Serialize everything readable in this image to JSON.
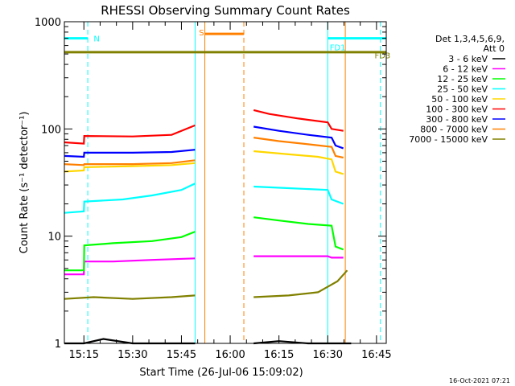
{
  "chart_data": {
    "type": "line",
    "title": "RHESSI Observing Summary Count Rates",
    "xlabel": "Start Time (26-Jul-06 15:09:02)",
    "ylabel": "Count Rate (s⁻¹ detector⁻¹)",
    "y_scale": "log",
    "ylim": [
      1,
      1000
    ],
    "y_ticks": [
      "1",
      "10",
      "100",
      "1000"
    ],
    "x_range_minutes": [
      15.15,
      16.8
    ],
    "x_ticks": [
      "15:15",
      "15:30",
      "15:45",
      "16:00",
      "16:15",
      "16:30",
      "16:45"
    ],
    "grid": false,
    "legend_placement": "right",
    "legend_header": [
      "Det 1,3,4,5,6,9,",
      "Att 0"
    ],
    "series": [
      {
        "name": "3 - 6 keV",
        "color": "#000000",
        "segments": [
          {
            "x": [
              15.15,
              15.25,
              15.35,
              15.5,
              15.65,
              15.82
            ],
            "y": [
              1.0,
              1.0,
              1.1,
              1.0,
              1.0,
              1.0
            ]
          },
          {
            "x": [
              16.12,
              16.25,
              16.4,
              16.55,
              16.62
            ],
            "y": [
              1.0,
              1.05,
              1.0,
              1.0,
              1.0
            ]
          }
        ]
      },
      {
        "name": "6 - 12 keV",
        "color": "#ff00ff",
        "segments": [
          {
            "x": [
              15.15,
              15.25,
              15.252,
              15.4,
              15.6,
              15.82
            ],
            "y": [
              4.4,
              4.4,
              5.8,
              5.8,
              6.0,
              6.2
            ]
          },
          {
            "x": [
              16.12,
              16.3,
              16.5,
              16.52,
              16.58
            ],
            "y": [
              6.5,
              6.5,
              6.5,
              6.3,
              6.3
            ]
          }
        ]
      },
      {
        "name": "12 - 25 keV",
        "color": "#00ff00",
        "segments": [
          {
            "x": [
              15.15,
              15.25,
              15.252,
              15.4,
              15.6,
              15.75,
              15.82
            ],
            "y": [
              4.8,
              4.8,
              8.2,
              8.6,
              9.0,
              9.8,
              11.0
            ]
          },
          {
            "x": [
              16.12,
              16.25,
              16.4,
              16.52,
              16.54,
              16.58
            ],
            "y": [
              15.0,
              14.0,
              13.0,
              12.5,
              8.0,
              7.5
            ]
          }
        ]
      },
      {
        "name": "25 - 50 keV",
        "color": "#00ffff",
        "segments": [
          {
            "x": [
              15.15,
              15.25,
              15.252,
              15.45,
              15.6,
              15.75,
              15.82
            ],
            "y": [
              16.5,
              17.0,
              21.0,
              22.0,
              24.0,
              27.0,
              31.0
            ]
          },
          {
            "x": [
              16.12,
              16.3,
              16.5,
              16.52,
              16.58
            ],
            "y": [
              29.0,
              28.0,
              27.0,
              22.0,
              20.0
            ]
          }
        ]
      },
      {
        "name": "50 - 100 keV",
        "color": "#ffd700",
        "segments": [
          {
            "x": [
              15.15,
              15.25,
              15.252,
              15.5,
              15.7,
              15.82
            ],
            "y": [
              40.0,
              41.0,
              44.0,
              45.0,
              46.0,
              48.0
            ]
          },
          {
            "x": [
              16.12,
              16.3,
              16.45,
              16.52,
              16.54,
              16.58
            ],
            "y": [
              62.0,
              58.0,
              55.0,
              52.0,
              40.0,
              38.0
            ]
          }
        ]
      },
      {
        "name": "100 - 300 keV",
        "color": "#ff0000",
        "segments": [
          {
            "x": [
              15.15,
              15.25,
              15.252,
              15.5,
              15.7,
              15.82
            ],
            "y": [
              75.0,
              73.0,
              86.0,
              85.0,
              88.0,
              108.0
            ]
          },
          {
            "x": [
              16.12,
              16.2,
              16.35,
              16.5,
              16.52,
              16.58
            ],
            "y": [
              150.0,
              138.0,
              125.0,
              115.0,
              100.0,
              96.0
            ]
          }
        ]
      },
      {
        "name": "300 - 800 keV",
        "color": "#0000ff",
        "segments": [
          {
            "x": [
              15.15,
              15.25,
              15.252,
              15.5,
              15.7,
              15.82
            ],
            "y": [
              56.0,
              55.0,
              60.0,
              60.0,
              61.0,
              64.0
            ]
          },
          {
            "x": [
              16.12,
              16.25,
              16.4,
              16.52,
              16.54,
              16.58
            ],
            "y": [
              105.0,
              96.0,
              88.0,
              83.0,
              70.0,
              66.0
            ]
          }
        ]
      },
      {
        "name": "800 - 7000 keV",
        "color": "#ff8000",
        "segments": [
          {
            "x": [
              15.15,
              15.25,
              15.252,
              15.5,
              15.7,
              15.82
            ],
            "y": [
              47.0,
              46.0,
              47.0,
              47.0,
              48.0,
              51.0
            ]
          },
          {
            "x": [
              16.12,
              16.25,
              16.4,
              16.52,
              16.54,
              16.58
            ],
            "y": [
              83.0,
              77.0,
              72.0,
              68.0,
              56.0,
              54.0
            ]
          }
        ]
      },
      {
        "name": "7000 - 15000 keV",
        "color": "#808000",
        "segments": [
          {
            "x": [
              15.15,
              15.3,
              15.5,
              15.7,
              15.82
            ],
            "y": [
              2.6,
              2.7,
              2.6,
              2.7,
              2.8
            ]
          },
          {
            "x": [
              16.12,
              16.3,
              16.45,
              16.55,
              16.6
            ],
            "y": [
              2.7,
              2.8,
              3.0,
              3.8,
              4.8
            ]
          }
        ]
      }
    ],
    "flags": [
      {
        "label": "N",
        "color": "#00ffff",
        "level": 700,
        "x_start": 15.15,
        "x_end": 15.27,
        "label_x": 15.3,
        "label_y": 700
      },
      {
        "label": "S",
        "color": "#ff8000",
        "level": 770,
        "x_start": 15.87,
        "x_end": 16.07,
        "label_x": 15.84,
        "label_y": 800
      },
      {
        "label": "FD1",
        "color": "#00ffff",
        "level": 700,
        "x_start": 16.5,
        "x_end": 16.8,
        "label_x": 16.51,
        "label_y": 580
      },
      {
        "label": "FD3",
        "color": "#808000",
        "level": 520,
        "x_start": 15.15,
        "x_end": 16.8,
        "label_x": 16.74,
        "label_y": 490
      }
    ],
    "markers": [
      {
        "x": 15.82,
        "color": "#00ffff",
        "style": "solid"
      },
      {
        "x": 15.27,
        "color": "#00ffff",
        "style": "dashed"
      },
      {
        "x": 15.87,
        "color": "#ff8000",
        "style": "solid"
      },
      {
        "x": 16.07,
        "color": "#ff8000",
        "style": "dashed"
      },
      {
        "x": 16.5,
        "color": "#00ffff",
        "style": "solid"
      },
      {
        "x": 16.77,
        "color": "#00ffff",
        "style": "dashed"
      },
      {
        "x": 16.59,
        "color": "#ff8000",
        "style": "solid"
      }
    ]
  },
  "footer": {
    "timestamp": "16-Oct-2021 07:21"
  }
}
